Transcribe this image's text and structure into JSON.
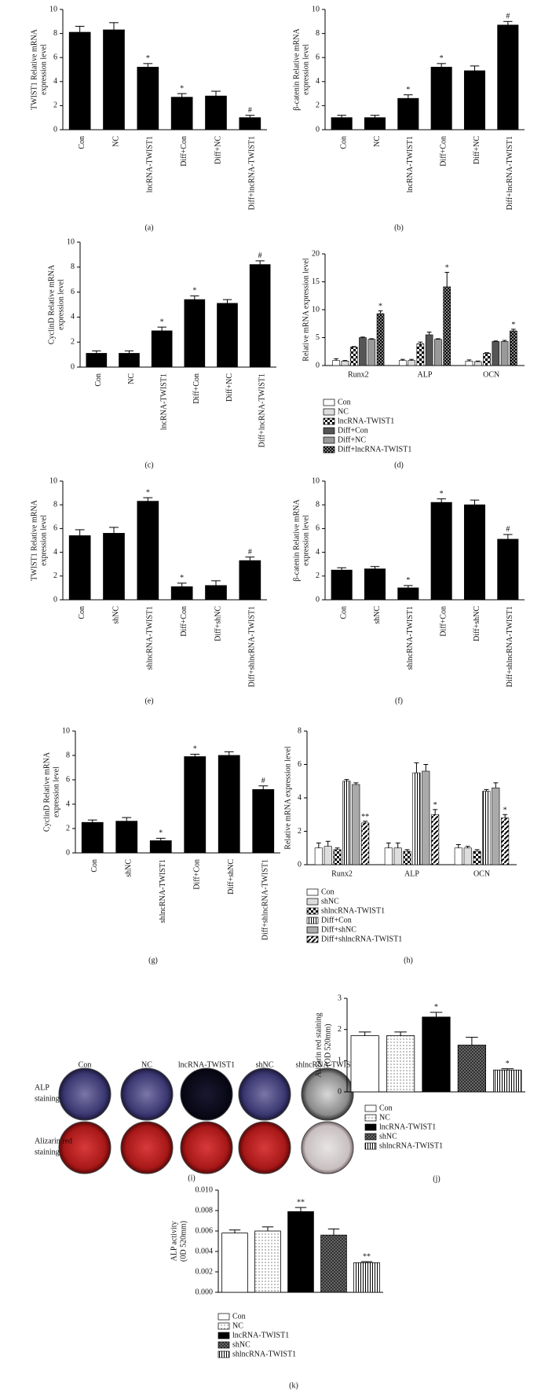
{
  "chart_data": [
    {
      "type": "bar",
      "panel": "(a)",
      "ylabel": [
        "TWIST1 Relative mRNA",
        "expression level"
      ],
      "categories": [
        "Con",
        "NC",
        "lncRNA-TWIST1",
        "Diff+Con",
        "Diff+NC",
        "Diff+lncRNA-TWIST1"
      ],
      "values": [
        8.1,
        8.3,
        5.2,
        2.7,
        2.8,
        1.0
      ],
      "errors": [
        0.5,
        0.6,
        0.3,
        0.3,
        0.4,
        0.2
      ],
      "markers": [
        null,
        null,
        "*",
        "*",
        null,
        "#"
      ],
      "color": "#000000",
      "ylim": [
        0,
        10
      ],
      "yticks": [
        0,
        2,
        4,
        6,
        8,
        10
      ]
    },
    {
      "type": "bar",
      "panel": "(b)",
      "ylabel": [
        "β-catenin Relative mRNA",
        "expression level"
      ],
      "categories": [
        "Con",
        "NC",
        "lncRNA-TWIST1",
        "Diff+Con",
        "Diff+NC",
        "Diff+lncRNA-TWIST1"
      ],
      "values": [
        1.0,
        1.0,
        2.6,
        5.2,
        4.9,
        8.7
      ],
      "errors": [
        0.2,
        0.2,
        0.3,
        0.3,
        0.4,
        0.3
      ],
      "markers": [
        null,
        null,
        "*",
        "*",
        null,
        "#"
      ],
      "color": "#000000",
      "ylim": [
        0,
        10
      ],
      "yticks": [
        0,
        2,
        4,
        6,
        8,
        10
      ]
    },
    {
      "type": "bar",
      "panel": "(c)",
      "ylabel": [
        "CyclinD Relative mRNA",
        "expression level"
      ],
      "categories": [
        "Con",
        "NC",
        "lncRNA-TWIST1",
        "Diff+Con",
        "Diff+NC",
        "Diff+lncRNA-TWIST1"
      ],
      "values": [
        1.1,
        1.1,
        2.9,
        5.4,
        5.1,
        8.2
      ],
      "errors": [
        0.2,
        0.2,
        0.3,
        0.3,
        0.3,
        0.3
      ],
      "markers": [
        null,
        null,
        "*",
        "*",
        null,
        "#"
      ],
      "color": "#000000",
      "ylim": [
        0,
        10
      ],
      "yticks": [
        0,
        2,
        4,
        6,
        8,
        10
      ]
    },
    {
      "type": "grouped",
      "panel": "(d)",
      "ylabel": [
        "Relative mRNA expression level"
      ],
      "categories": [
        "Runx2",
        "ALP",
        "OCN"
      ],
      "ylim": [
        0,
        20
      ],
      "yticks": [
        0,
        5,
        10,
        15,
        20
      ],
      "legend": "below",
      "series": [
        {
          "name": "Con",
          "color": "#ffffff",
          "pattern": "solid",
          "values": [
            0.9,
            0.9,
            0.8
          ],
          "errors": [
            0.3,
            0.2,
            0.2
          ]
        },
        {
          "name": "NC",
          "color": "#dddddd",
          "pattern": "solid",
          "values": [
            0.8,
            0.9,
            0.7
          ],
          "errors": [
            0.1,
            0.2,
            0.1
          ]
        },
        {
          "name": "lncRNA-TWIST1",
          "color": "#000000",
          "pattern": "checker",
          "values": [
            3.3,
            3.9,
            2.2
          ],
          "errors": [
            0.1,
            0.3,
            0.1
          ]
        },
        {
          "name": "Diff+Con",
          "color": "#555555",
          "pattern": "solid",
          "values": [
            5.0,
            5.5,
            4.3
          ],
          "errors": [
            0.1,
            0.5,
            0.1
          ]
        },
        {
          "name": "Diff+NC",
          "color": "#999999",
          "pattern": "solid",
          "values": [
            4.7,
            4.7,
            4.3
          ],
          "errors": [
            0.1,
            0.1,
            0.2
          ]
        },
        {
          "name": "Diff+lncRNA-TWIST1",
          "color": "#222222",
          "pattern": "checker-dark",
          "values": [
            9.3,
            14.1,
            6.2
          ],
          "errors": [
            0.5,
            2.6,
            0.3
          ],
          "markers": [
            "*",
            "*",
            "*"
          ]
        }
      ]
    },
    {
      "type": "bar",
      "panel": "(e)",
      "ylabel": [
        "TWIST1 Relative mRNA",
        "expression level"
      ],
      "categories": [
        "Con",
        "shNC",
        "shlncRNA-TWIST1",
        "Diff+Con",
        "Diff+shNC",
        "Diff+shlncRNA-TWIST1"
      ],
      "values": [
        5.4,
        5.6,
        8.3,
        1.1,
        1.2,
        3.3
      ],
      "errors": [
        0.5,
        0.5,
        0.3,
        0.3,
        0.4,
        0.3
      ],
      "markers": [
        null,
        null,
        "*",
        "*",
        null,
        "#"
      ],
      "color": "#000000",
      "ylim": [
        0,
        10
      ],
      "yticks": [
        0,
        2,
        4,
        6,
        8,
        10
      ]
    },
    {
      "type": "bar",
      "panel": "(f)",
      "ylabel": [
        "β-catenin Relative mRNA",
        "expression level"
      ],
      "categories": [
        "Con",
        "shNC",
        "shlncRNA-TWIST1",
        "Diff+Con",
        "Diff+shNC",
        "Diff+shlncRNA-TWIST1"
      ],
      "values": [
        2.5,
        2.6,
        1.0,
        8.2,
        8.0,
        5.1
      ],
      "errors": [
        0.2,
        0.2,
        0.2,
        0.3,
        0.4,
        0.4
      ],
      "markers": [
        null,
        null,
        "*",
        "*",
        null,
        "#"
      ],
      "color": "#000000",
      "ylim": [
        0,
        10
      ],
      "yticks": [
        0,
        2,
        4,
        6,
        8,
        10
      ]
    },
    {
      "type": "bar",
      "panel": "(g)",
      "ylabel": [
        "CyclinD Relative mRNA",
        "expression level"
      ],
      "categories": [
        "Con",
        "shNC",
        "shlncRNA-TWIST1",
        "Diff+Con",
        "Diff+shNC",
        "Diff+shlncRNA-TWIST1"
      ],
      "values": [
        2.5,
        2.6,
        1.0,
        7.9,
        8.0,
        5.2
      ],
      "errors": [
        0.2,
        0.3,
        0.2,
        0.2,
        0.3,
        0.3
      ],
      "markers": [
        null,
        null,
        "*",
        "*",
        null,
        "#"
      ],
      "color": "#000000",
      "ylim": [
        0,
        10
      ],
      "yticks": [
        0,
        2,
        4,
        6,
        8,
        10
      ]
    },
    {
      "type": "grouped",
      "panel": "(h)",
      "ylabel": [
        "Relative mRNA expression level"
      ],
      "categories": [
        "Runx2",
        "ALP",
        "OCN"
      ],
      "ylim": [
        0,
        8
      ],
      "yticks": [
        0,
        2,
        4,
        6,
        8
      ],
      "legend": "below",
      "series": [
        {
          "name": "Con",
          "color": "#ffffff",
          "pattern": "solid",
          "values": [
            1.0,
            1.0,
            1.0
          ],
          "errors": [
            0.3,
            0.3,
            0.2
          ]
        },
        {
          "name": "shNC",
          "color": "#dddddd",
          "pattern": "solid",
          "values": [
            1.1,
            1.0,
            1.0
          ],
          "errors": [
            0.3,
            0.3,
            0.1
          ]
        },
        {
          "name": "shlncRNA-TWIST1",
          "color": "#000000",
          "pattern": "checker",
          "values": [
            0.9,
            0.8,
            0.8
          ],
          "errors": [
            0.1,
            0.1,
            0.1
          ]
        },
        {
          "name": "Diff+Con",
          "color": "#000000",
          "pattern": "vstripes",
          "values": [
            5.0,
            5.5,
            4.4
          ],
          "errors": [
            0.1,
            0.6,
            0.1
          ]
        },
        {
          "name": "Diff+shNC",
          "color": "#aaaaaa",
          "pattern": "solid",
          "values": [
            4.8,
            5.6,
            4.6
          ],
          "errors": [
            0.1,
            0.4,
            0.3
          ]
        },
        {
          "name": "Diff+shlncRNA-TWIST1",
          "color": "#000000",
          "pattern": "dash",
          "values": [
            2.5,
            3.0,
            2.8
          ],
          "errors": [
            0.1,
            0.3,
            0.2
          ],
          "markers": [
            "**",
            "*",
            "*"
          ]
        }
      ]
    },
    {
      "type": "image",
      "panel": "(i)",
      "columns": [
        "Con",
        "NC",
        "lncRNA-TWIST1",
        "shNC",
        "shlncRNA-TWIST1"
      ],
      "rows": [
        [
          "ALP",
          "staining"
        ],
        [
          "Alizarin red",
          "staining"
        ]
      ]
    },
    {
      "type": "bar",
      "panel": "(j)",
      "ylabel": [
        "Alizarin red staining",
        "(OD 520mm)"
      ],
      "categories": [
        "Con",
        "NC",
        "lncRNA-TWIST1",
        "shNC",
        "shlncRNA-TWIST1"
      ],
      "values": [
        1.8,
        1.8,
        2.4,
        1.5,
        0.7
      ],
      "errors": [
        0.12,
        0.12,
        0.15,
        0.25,
        0.04
      ],
      "markers": [
        null,
        null,
        "*",
        null,
        "*"
      ],
      "color": "#000000",
      "patterns": [
        "white",
        "dots",
        "solid",
        "cross",
        "vstripes"
      ],
      "legend": "below",
      "ylim": [
        0,
        3
      ],
      "yticks": [
        0,
        1,
        2,
        3
      ]
    },
    {
      "type": "bar",
      "panel": "(k)",
      "ylabel": [
        "ALP activity",
        "(0D 520mm)"
      ],
      "categories": [
        "Con",
        "NC",
        "lncRNA-TWIST1",
        "shNC",
        "shlncRNA-TWIST1"
      ],
      "values": [
        0.0058,
        0.006,
        0.0079,
        0.0056,
        0.0029
      ],
      "errors": [
        0.0003,
        0.0004,
        0.0004,
        0.0006,
        0.0001
      ],
      "markers": [
        null,
        null,
        "**",
        null,
        "**"
      ],
      "color": "#000000",
      "patterns": [
        "white",
        "dots",
        "solid",
        "cross",
        "vstripes"
      ],
      "legend": "below",
      "ylim": [
        0,
        0.01
      ],
      "yticks": [
        {
          "value": 0,
          "label": "0.000"
        },
        {
          "value": 0.002,
          "label": "0.002"
        },
        {
          "value": 0.004,
          "label": "0.004"
        },
        {
          "value": 0.006,
          "label": "0.006"
        },
        {
          "value": 0.008,
          "label": "0.008"
        },
        {
          "value": 0.01,
          "label": "0.010"
        }
      ]
    }
  ]
}
